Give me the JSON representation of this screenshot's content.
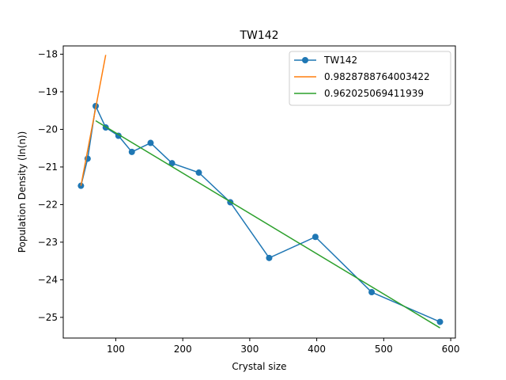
{
  "chart_data": {
    "type": "line",
    "title": "TW142",
    "xlabel": "Crystal size",
    "ylabel": "Population Density (ln(n))",
    "xlim": [
      21.6,
      607.0
    ],
    "ylim": [
      -25.55,
      -17.78
    ],
    "xticks": [
      100,
      200,
      300,
      400,
      500,
      600
    ],
    "xtick_labels": [
      "100",
      "200",
      "300",
      "400",
      "500",
      "600"
    ],
    "yticks": [
      -25,
      -24,
      -23,
      -22,
      -21,
      -20,
      -19,
      -18
    ],
    "ytick_labels": [
      "−25",
      "−24",
      "−23",
      "−22",
      "−21",
      "−20",
      "−19",
      "−18"
    ],
    "grid": false,
    "legend": "top-right",
    "series": [
      {
        "name": "TW142",
        "color": "#1f77b4",
        "marker": "circle",
        "x": [
          48,
          58,
          70,
          85,
          104,
          124,
          152,
          184,
          224,
          271,
          329,
          398,
          482,
          584
        ],
        "y": [
          -21.5,
          -20.78,
          -19.38,
          -19.95,
          -20.17,
          -20.6,
          -20.36,
          -20.9,
          -21.15,
          -21.94,
          -23.42,
          -22.86,
          -24.33,
          -25.12
        ]
      },
      {
        "name": "0.9828788764003422",
        "color": "#ff7f0e",
        "marker": "none",
        "x": [
          48,
          85
        ],
        "y": [
          -21.5,
          -18.02
        ]
      },
      {
        "name": "0.962025069411939",
        "color": "#2ca02c",
        "marker": "none",
        "x": [
          70,
          584
        ],
        "y": [
          -19.77,
          -25.28
        ]
      }
    ]
  }
}
